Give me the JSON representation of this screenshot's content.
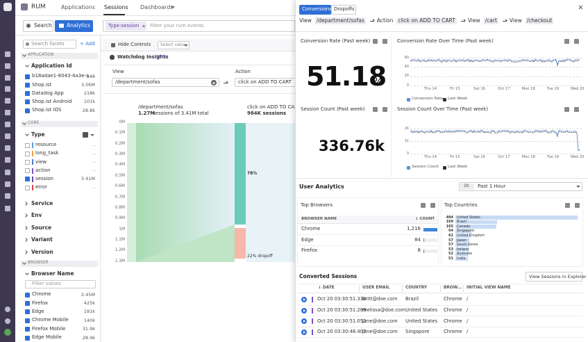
{
  "nav": {
    "logo": "RUM",
    "tabs": [
      "Applications",
      "Sessions",
      "Dashboards"
    ]
  },
  "toolbar": {
    "search": "Search",
    "analytics": "Analytics",
    "chip": "Type:session",
    "placeholder": "Filter your rum events"
  },
  "facets": {
    "search": "Search facets",
    "add": "+ Add",
    "application": {
      "header": "APPLICATION",
      "facet": "Application Id",
      "items": [
        {
          "label": "b18adae1-8043-4a3e-a...",
          "count": "148"
        },
        {
          "label": "Shop.ist",
          "count": "3.06M"
        },
        {
          "label": "Datadog App",
          "count": "218k"
        },
        {
          "label": "Shop.ist Android",
          "count": "101k"
        },
        {
          "label": "Shop.ist iOS",
          "count": "28.8k"
        }
      ]
    },
    "core": {
      "header": "CORE",
      "facet": "Type",
      "items": [
        {
          "label": "resource",
          "count": "-"
        },
        {
          "label": "long_task",
          "count": "-"
        },
        {
          "label": "view",
          "count": "-"
        },
        {
          "label": "action",
          "count": "-"
        },
        {
          "label": "session",
          "count": "3.41M"
        },
        {
          "label": "error",
          "count": "-"
        }
      ]
    },
    "collapsed": [
      "Service",
      "Env",
      "Source",
      "Variant",
      "Version"
    ],
    "browser": {
      "header": "BROWSER",
      "facet": "Browser Name",
      "filter": "Filter values",
      "items": [
        {
          "label": "Chrome",
          "count": "2.45M"
        },
        {
          "label": "Firefox",
          "count": "425k"
        },
        {
          "label": "Edge",
          "count": "181k"
        },
        {
          "label": "Chrome Mobile",
          "count": "140k"
        },
        {
          "label": "Firefox Mobile",
          "count": "31.9k"
        },
        {
          "label": "Edge Mobile",
          "count": "28.9k"
        }
      ]
    }
  },
  "funnel": {
    "hide_controls": "Hide Controls",
    "select_value": "Select value",
    "watchdog": "Watchdog Insights",
    "beta": "BETA",
    "view_label": "View",
    "action_label": "Action",
    "view_value": "/department/sofas",
    "action_value": "click on ADD TO CART",
    "axis": [
      "0M",
      "0.1M",
      "0.2M",
      "0.3M",
      "0.4M",
      "0.5M",
      "0.6M",
      "0.7M",
      "0.8M",
      "0.9M",
      "1M",
      "1.1M",
      "1.2M",
      "1.3M"
    ],
    "steps": [
      {
        "name": "/department/sofas",
        "sessions": "1.27M",
        "detail": "sessions of 3.41M total"
      },
      {
        "name": "click on ADD TO CART",
        "sessions": "984K sessions",
        "conversion": "78%",
        "dropoff": "22% dropoff"
      }
    ]
  },
  "panel": {
    "tabs": [
      "Conversions",
      "Dropoffs"
    ],
    "path": [
      {
        "kind": "View",
        "value": "/department/sofas"
      },
      {
        "kind": "Action",
        "value": "click on ADD TO CART"
      },
      {
        "kind": "View",
        "value": "/cart"
      },
      {
        "kind": "View",
        "value": "/checkout"
      }
    ],
    "conversion": {
      "title": "Conversion Rate (Past week)",
      "value": "51.18",
      "unit": "%"
    },
    "conversion_chart": {
      "title": "Conversion Rate Over Time (Past week)",
      "yticks": [
        "60",
        "40",
        "20",
        "0"
      ],
      "legend": [
        "Conversion Rate",
        "Last Week"
      ]
    },
    "sessions": {
      "title": "Session Count (Past week)",
      "value": "336.76k"
    },
    "sessions_chart": {
      "title": "Session Count Over Time (Past week)",
      "yticks": [
        "2k",
        "1k",
        "0"
      ],
      "legend": [
        "Session Count",
        "Last Week"
      ]
    },
    "xticks": [
      "Thu 14",
      "Fri 15",
      "Sat 16",
      "Oct 17",
      "Mon 18",
      "Tue 19",
      "Wed 20"
    ],
    "user_analytics": "User Analytics",
    "range_short": "1h",
    "range": "Past 1 Hour",
    "browsers": {
      "title": "Top Browsers",
      "columns": [
        "BROWSER NAME",
        "↓ COUNT"
      ],
      "rows": [
        {
          "name": "Chrome",
          "count": {
            "value": 1216,
            "label": "1,216"
          }
        },
        {
          "name": "Edge",
          "count": 84
        },
        {
          "name": "Firefox",
          "count": 8
        }
      ]
    },
    "countries": {
      "title": "Top Countries",
      "rows": [
        {
          "count": 494,
          "name": "United States"
        },
        {
          "count": 169,
          "name": "Brazil"
        },
        {
          "count": 165,
          "name": "Canada"
        },
        {
          "count": 64,
          "name": "Singapore"
        },
        {
          "count": 62,
          "name": "United Kingdom"
        },
        {
          "count": 57,
          "name": "Japan"
        },
        {
          "count": 57,
          "name": "South Korea"
        },
        {
          "count": 53,
          "name": "Ireland"
        },
        {
          "count": 52,
          "name": "Australia"
        },
        {
          "count": 51,
          "name": "India"
        }
      ]
    },
    "converted": {
      "title": "Converted Sessions",
      "button": "View Sessions in Explorer",
      "columns": [
        "↓ DATE",
        "USER EMAIL",
        "COUNTRY",
        "BROW...",
        "INITIAL VIEW NAME"
      ],
      "rows": [
        [
          "Oct 20 03:30:51.334",
          "britt@doe.com",
          "Brazil",
          "Chrome",
          "/"
        ],
        [
          "Oct 20 03:30:51.289",
          "melissa@doe.com",
          "United States",
          "Chrome",
          "/"
        ],
        [
          "Oct 20 03:30:51.052",
          "jane@doe.com",
          "United States",
          "Chrome",
          "/"
        ],
        [
          "Oct 20 03:30:48.407",
          "jane@doe.com",
          "Singapore",
          "Chrome",
          "/"
        ]
      ]
    }
  }
}
